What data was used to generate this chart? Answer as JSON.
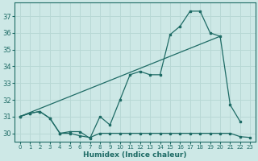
{
  "xlabel": "Humidex (Indice chaleur)",
  "bg_color": "#cde8e6",
  "grid_color": "#b8d8d5",
  "line_color": "#1e6b65",
  "xlim": [
    -0.5,
    23.5
  ],
  "ylim": [
    29.5,
    37.8
  ],
  "xticks": [
    0,
    1,
    2,
    3,
    4,
    5,
    6,
    7,
    8,
    9,
    10,
    11,
    12,
    13,
    14,
    15,
    16,
    17,
    18,
    19,
    20,
    21,
    22,
    23
  ],
  "yticks": [
    30,
    31,
    32,
    33,
    34,
    35,
    36,
    37
  ],
  "line1_x": [
    0,
    1,
    2,
    3,
    4,
    5,
    6,
    7,
    8,
    9,
    10,
    11,
    12,
    13,
    14,
    15,
    16,
    17,
    18,
    19,
    20,
    21,
    22,
    23
  ],
  "line1_y": [
    31.0,
    31.2,
    31.3,
    30.9,
    30.0,
    30.0,
    29.85,
    29.75,
    30.0,
    30.0,
    30.0,
    30.0,
    30.0,
    30.0,
    30.0,
    30.0,
    30.0,
    30.0,
    30.0,
    30.0,
    30.0,
    30.0,
    29.8,
    29.75
  ],
  "line2_x": [
    0,
    1,
    2,
    3,
    4,
    5,
    6,
    7,
    8,
    9,
    10,
    11,
    12,
    13,
    14,
    15,
    16,
    17,
    18,
    19,
    20,
    21,
    22
  ],
  "line2_y": [
    31.0,
    31.2,
    31.3,
    30.9,
    30.0,
    30.1,
    30.1,
    29.7,
    31.0,
    30.5,
    32.0,
    33.5,
    33.7,
    33.5,
    33.5,
    35.9,
    36.4,
    37.3,
    37.3,
    36.0,
    35.8,
    31.7,
    30.7
  ],
  "line3_x": [
    0,
    20
  ],
  "line3_y": [
    31.0,
    35.8
  ],
  "xtick_fontsize": 5.0,
  "ytick_fontsize": 6.0,
  "xlabel_fontsize": 6.5
}
